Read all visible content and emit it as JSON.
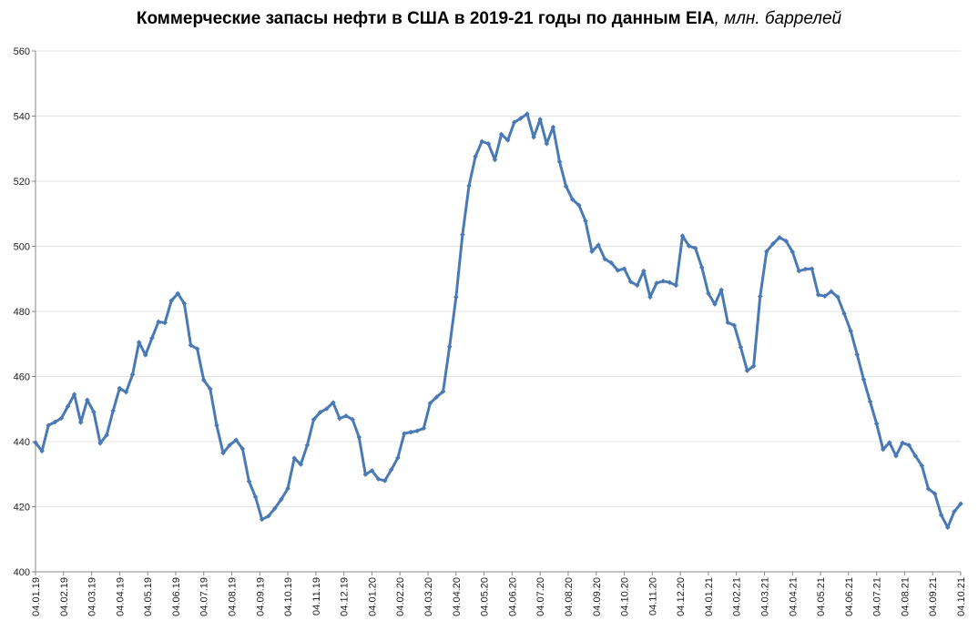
{
  "chart_data": {
    "type": "line",
    "title": "Коммерческие запасы нефти в США в 2019-21 годы по данным EIA",
    "title_unit": ", млн. баррелей",
    "xlabel": "",
    "ylabel": "",
    "ylim": [
      400,
      560
    ],
    "yticks": [
      "400",
      "420",
      "440",
      "460",
      "480",
      "500",
      "520",
      "540",
      "560"
    ],
    "grid": true,
    "xtick_labels": [
      "04.01.19",
      "04.02.19",
      "04.03.19",
      "04.04.19",
      "04.05.19",
      "04.06.19",
      "04.07.19",
      "04.08.19",
      "04.09.19",
      "04.10.19",
      "04.11.19",
      "04.12.19",
      "04.01.20",
      "04.02.20",
      "04.03.20",
      "04.04.20",
      "04.05.20",
      "04.06.20",
      "04.07.20",
      "04.08.20",
      "04.09.20",
      "04.10.20",
      "04.11.20",
      "04.12.20",
      "04.01.21",
      "04.02.21",
      "04.03.21",
      "04.04.21",
      "04.05.21",
      "04.06.21",
      "04.07.21",
      "04.08.21",
      "04.09.21",
      "04.10.21"
    ],
    "series": [
      {
        "name": "Коммерческие запасы нефти",
        "color": "#4a7ab5",
        "values": [
          439.7,
          437.1,
          445.0,
          446.0,
          447.2,
          450.8,
          454.5,
          445.9,
          452.8,
          449.1,
          439.5,
          442.0,
          449.5,
          456.4,
          455.2,
          460.6,
          470.5,
          466.6,
          471.8,
          476.8,
          476.5,
          483.3,
          485.5,
          482.4,
          469.6,
          468.5,
          458.9,
          456.2,
          445.0,
          436.5,
          438.9,
          440.5,
          437.8,
          427.8,
          423.0,
          416.1,
          417.1,
          419.5,
          422.3,
          425.6,
          434.9,
          433.0,
          438.9,
          446.8,
          449.0,
          450.1,
          452.0,
          447.1,
          447.9,
          446.8,
          441.4,
          429.9,
          431.1,
          428.5,
          428.0,
          431.4,
          435.0,
          442.5,
          442.9,
          443.3,
          444.1,
          451.8,
          453.7,
          455.4,
          469.2,
          484.4,
          503.6,
          518.6,
          527.6,
          532.2,
          531.5,
          526.6,
          534.4,
          532.6,
          538.1,
          539.3,
          540.7,
          533.5,
          539.0,
          531.5,
          536.6,
          526.0,
          518.4,
          514.4,
          512.6,
          507.8,
          498.4,
          500.4,
          496.1,
          494.9,
          492.6,
          493.1,
          489.1,
          488.0,
          492.4,
          484.4,
          488.7,
          489.3,
          488.9,
          488.0,
          503.2,
          500.1,
          499.4,
          493.5,
          485.5,
          482.2,
          486.6,
          476.6,
          475.7,
          469.0,
          461.8,
          463.2,
          484.6,
          498.4,
          500.8,
          502.7,
          501.6,
          498.3,
          492.4,
          493.0,
          493.1,
          485.1,
          484.7,
          486.1,
          484.4,
          479.3,
          474.0,
          466.7,
          459.1,
          452.3,
          445.5,
          437.6,
          439.7,
          435.6,
          439.6,
          438.9,
          435.6,
          432.6,
          425.5,
          424.0,
          417.4,
          413.6,
          418.5,
          420.9
        ]
      }
    ]
  }
}
